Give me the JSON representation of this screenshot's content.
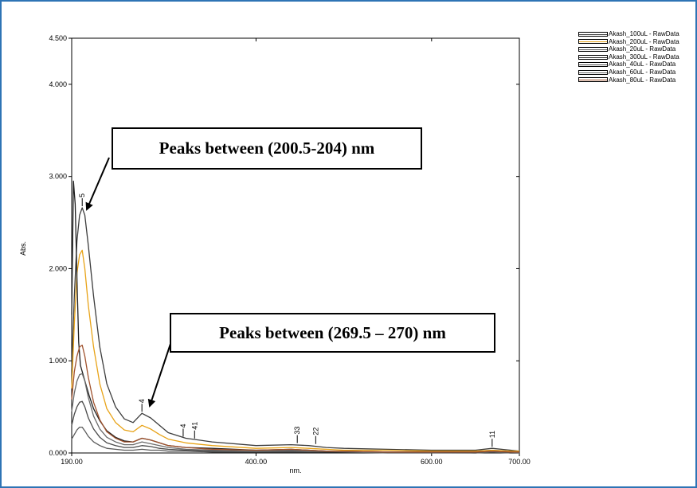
{
  "chart_data": {
    "type": "line",
    "xlabel": "nm.",
    "ylabel": "Abs.",
    "xlim": [
      190,
      700
    ],
    "ylim": [
      0,
      4.5
    ],
    "x_ticks": [
      "190.00",
      "400.00",
      "600.00",
      "700.00"
    ],
    "x_tick_values": [
      190,
      400,
      600,
      700
    ],
    "y_ticks": [
      "0.000",
      "1.000",
      "2.000",
      "3.000",
      "4.000",
      "4.500"
    ],
    "y_tick_values": [
      0,
      1,
      2,
      3,
      4,
      4.5
    ],
    "legend_position": "top-right",
    "series": [
      {
        "name": "Akash_100uL - RawData",
        "color": "#3c3c3c",
        "x": [
          190,
          193,
          196,
          199,
          202,
          205,
          209,
          215,
          222,
          230,
          240,
          250,
          260,
          270,
          280,
          290,
          300,
          320,
          350,
          400,
          440,
          460,
          480,
          500,
          550,
          600,
          650,
          669,
          690,
          700
        ],
        "y": [
          0.9,
          1.7,
          2.3,
          2.58,
          2.66,
          2.58,
          2.25,
          1.7,
          1.15,
          0.75,
          0.5,
          0.37,
          0.33,
          0.43,
          0.38,
          0.3,
          0.22,
          0.16,
          0.12,
          0.08,
          0.09,
          0.08,
          0.06,
          0.05,
          0.04,
          0.03,
          0.03,
          0.05,
          0.03,
          0.02
        ]
      },
      {
        "name": "Akash_200uL - RawData",
        "color": "#e8a317",
        "x": [
          190,
          193,
          196,
          199,
          202,
          205,
          209,
          215,
          222,
          230,
          240,
          250,
          260,
          270,
          280,
          290,
          300,
          320,
          350,
          400,
          440,
          460,
          480,
          500,
          550,
          600,
          650,
          669,
          690,
          700
        ],
        "y": [
          0.7,
          1.4,
          1.95,
          2.15,
          2.2,
          2.0,
          1.6,
          1.15,
          0.75,
          0.48,
          0.33,
          0.25,
          0.23,
          0.3,
          0.26,
          0.2,
          0.15,
          0.11,
          0.08,
          0.05,
          0.06,
          0.05,
          0.04,
          0.03,
          0.03,
          0.02,
          0.02,
          0.03,
          0.02,
          0.02
        ]
      },
      {
        "name": "Akash_20uL - RawData",
        "color": "#5a5a5a",
        "x": [
          190,
          193,
          196,
          199,
          202,
          205,
          209,
          215,
          222,
          230,
          240,
          250,
          260,
          270,
          280,
          290,
          300,
          320,
          350,
          400,
          440,
          460,
          480,
          500,
          550,
          600,
          650,
          669,
          690,
          700
        ],
        "y": [
          0.15,
          0.2,
          0.25,
          0.28,
          0.28,
          0.24,
          0.18,
          0.12,
          0.08,
          0.05,
          0.04,
          0.03,
          0.03,
          0.04,
          0.03,
          0.03,
          0.02,
          0.02,
          0.01,
          0.01,
          0.01,
          0.01,
          0.01,
          0.01,
          0.0,
          0.0,
          0.0,
          0.01,
          0.0,
          0.0
        ]
      },
      {
        "name": "Akash_300uL - RawData",
        "color": "#1e1e1e",
        "x": [
          190,
          192,
          194,
          196,
          198,
          200,
          203,
          206,
          210,
          215,
          222,
          230,
          240,
          250,
          260,
          270,
          280,
          290,
          300,
          320,
          350,
          400,
          440,
          460,
          480,
          500,
          550,
          600,
          650,
          669,
          690,
          700
        ],
        "y": [
          1.5,
          2.95,
          2.7,
          1.9,
          1.2,
          0.95,
          0.85,
          0.75,
          0.62,
          0.48,
          0.35,
          0.24,
          0.17,
          0.13,
          0.12,
          0.16,
          0.14,
          0.11,
          0.08,
          0.06,
          0.05,
          0.03,
          0.04,
          0.03,
          0.02,
          0.02,
          0.01,
          0.01,
          0.01,
          0.02,
          0.01,
          0.01
        ]
      },
      {
        "name": "Akash_40uL - RawData",
        "color": "#4a4a4a",
        "x": [
          190,
          193,
          196,
          199,
          202,
          205,
          209,
          215,
          222,
          230,
          240,
          250,
          260,
          270,
          280,
          290,
          300,
          320,
          350,
          400,
          440,
          460,
          480,
          500,
          550,
          600,
          650,
          669,
          690,
          700
        ],
        "y": [
          0.3,
          0.42,
          0.5,
          0.55,
          0.56,
          0.5,
          0.38,
          0.26,
          0.17,
          0.11,
          0.08,
          0.06,
          0.06,
          0.08,
          0.07,
          0.05,
          0.04,
          0.03,
          0.02,
          0.02,
          0.02,
          0.02,
          0.01,
          0.01,
          0.01,
          0.01,
          0.0,
          0.01,
          0.0,
          0.0
        ]
      },
      {
        "name": "Akash_60uL - RawData",
        "color": "#6a6a6a",
        "x": [
          190,
          193,
          196,
          199,
          202,
          205,
          209,
          215,
          222,
          230,
          240,
          250,
          260,
          270,
          280,
          290,
          300,
          320,
          350,
          400,
          440,
          460,
          480,
          500,
          550,
          600,
          650,
          669,
          690,
          700
        ],
        "y": [
          0.45,
          0.65,
          0.78,
          0.85,
          0.86,
          0.78,
          0.6,
          0.4,
          0.26,
          0.17,
          0.12,
          0.09,
          0.09,
          0.12,
          0.1,
          0.08,
          0.06,
          0.04,
          0.03,
          0.02,
          0.03,
          0.02,
          0.02,
          0.01,
          0.01,
          0.01,
          0.01,
          0.01,
          0.01,
          0.0
        ]
      },
      {
        "name": "Akash_80uL - RawData",
        "color": "#a0522d",
        "x": [
          190,
          193,
          196,
          199,
          202,
          205,
          209,
          215,
          222,
          230,
          240,
          250,
          260,
          270,
          280,
          290,
          300,
          320,
          350,
          400,
          440,
          460,
          480,
          500,
          550,
          600,
          650,
          669,
          690,
          700
        ],
        "y": [
          0.58,
          0.88,
          1.05,
          1.15,
          1.17,
          1.05,
          0.82,
          0.55,
          0.36,
          0.23,
          0.16,
          0.12,
          0.12,
          0.16,
          0.14,
          0.11,
          0.08,
          0.06,
          0.04,
          0.03,
          0.04,
          0.03,
          0.02,
          0.02,
          0.01,
          0.01,
          0.01,
          0.02,
          0.01,
          0.01
        ]
      }
    ],
    "peak_labels": [
      {
        "text": "5",
        "x": 202,
        "y": 2.66
      },
      {
        "text": "4",
        "x": 270,
        "y": 0.43
      },
      {
        "text": "4",
        "x": 317,
        "y": 0.16
      },
      {
        "text": "41",
        "x": 330,
        "y": 0.14
      },
      {
        "text": "33",
        "x": 447,
        "y": 0.09
      },
      {
        "text": "22",
        "x": 468,
        "y": 0.08
      },
      {
        "text": "11",
        "x": 669,
        "y": 0.05
      }
    ],
    "annotations": [
      {
        "text": "Peaks between (200.5-204) nm",
        "points_to": {
          "x": 203,
          "y": 2.72
        }
      },
      {
        "text": "Peaks between (269.5 – 270) nm",
        "points_to": {
          "x": 270,
          "y": 0.45
        }
      }
    ]
  }
}
